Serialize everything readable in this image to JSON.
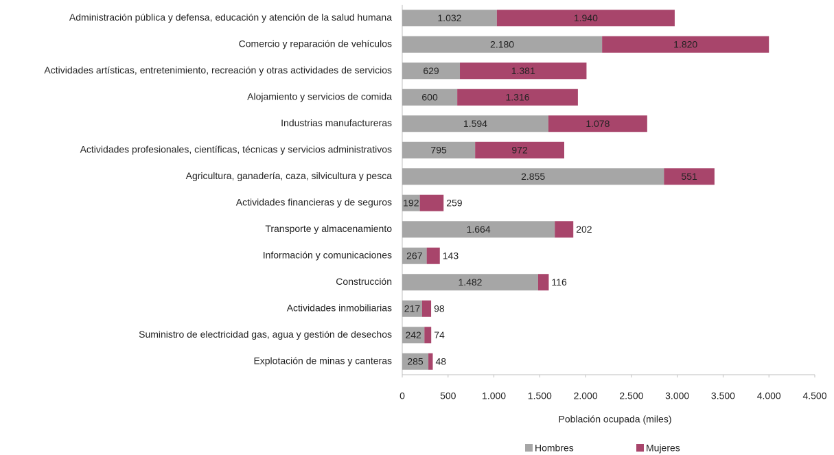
{
  "chart_data": {
    "type": "bar",
    "orientation": "horizontal",
    "stacked": true,
    "x_label": "Población ocupada (miles)",
    "categories": [
      "Administración pública y defensa, educación y atención de la salud humana",
      "Comercio y reparación de vehículos",
      "Actividades artísticas, entretenimiento, recreación y otras actividades de servicios",
      "Alojamiento y servicios de comida",
      "Industrias manufactureras",
      "Actividades profesionales, científicas, técnicas y servicios administrativos",
      "Agricultura, ganadería, caza, silvicultura y pesca",
      "Actividades financieras y de seguros",
      "Transporte y almacenamiento",
      "Información y comunicaciones",
      "Construcción",
      "Actividades inmobiliarias",
      "Suministro de electricidad gas, agua y gestión de desechos",
      "Explotación de minas y canteras"
    ],
    "series": [
      {
        "name": "Hombres",
        "color": "#a6a6a6",
        "values": [
          1032,
          2180,
          629,
          600,
          1594,
          795,
          2855,
          192,
          1664,
          267,
          1482,
          217,
          242,
          285
        ],
        "value_labels": [
          "1.032",
          "2.180",
          "629",
          "600",
          "1.594",
          "795",
          "2.855",
          "192",
          "1.664",
          "267",
          "1.482",
          "217",
          "242",
          "285"
        ]
      },
      {
        "name": "Mujeres",
        "color": "#a8456b",
        "values": [
          1940,
          1820,
          1381,
          1316,
          1078,
          972,
          551,
          259,
          202,
          143,
          116,
          98,
          74,
          48
        ],
        "value_labels": [
          "1.940",
          "1.820",
          "1.381",
          "1.316",
          "1.078",
          "972",
          "551",
          "259",
          "202",
          "143",
          "116",
          "98",
          "74",
          "48"
        ]
      }
    ],
    "xlim": [
      0,
      4500
    ],
    "xticks": [
      0,
      500,
      {
        "value": 1000,
        "label": "1.000"
      },
      {
        "value": 1500,
        "label": "1.500"
      },
      {
        "value": 2000,
        "label": "2.000"
      },
      {
        "value": 2500,
        "label": "2.500"
      },
      {
        "value": 3000,
        "label": "3.000"
      },
      {
        "value": 3500,
        "label": "3.500"
      },
      {
        "value": 4000,
        "label": "4.000"
      },
      {
        "value": 4500,
        "label": "4.500"
      }
    ],
    "legend": "bottom"
  }
}
